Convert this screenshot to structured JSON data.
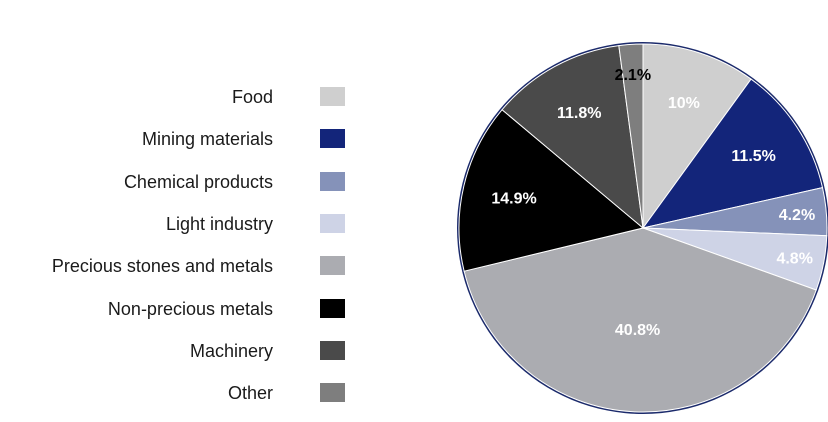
{
  "chart_data": {
    "type": "pie",
    "title": "",
    "border_color": "#1b2a6b",
    "slices": [
      {
        "label": "Food",
        "value": 10,
        "value_label": "10%",
        "color": "#cfcfcf",
        "label_color": "#ffffff"
      },
      {
        "label": "Mining materials",
        "value": 11.5,
        "value_label": "11.5%",
        "color": "#13257a",
        "label_color": "#ffffff"
      },
      {
        "label": "Chemical products",
        "value": 4.2,
        "value_label": "4.2%",
        "color": "#8592b9",
        "label_color": "#ffffff"
      },
      {
        "label": "Light industry",
        "value": 4.8,
        "value_label": "4.8%",
        "color": "#ced3e6",
        "label_color": "#ffffff"
      },
      {
        "label": "Precious stones and metals",
        "value": 40.8,
        "value_label": "40.8%",
        "color": "#abacb1",
        "label_color": "#ffffff"
      },
      {
        "label": "Non-precious metals",
        "value": 14.9,
        "value_label": "14.9%",
        "color": "#000000",
        "label_color": "#ffffff"
      },
      {
        "label": "Machinery",
        "value": 11.8,
        "value_label": "11.8%",
        "color": "#4a4a4a",
        "label_color": "#ffffff"
      },
      {
        "label": "Other",
        "value": 2.1,
        "value_label": "2.1%",
        "color": "#7e7e7e",
        "label_color": "#000000"
      }
    ]
  }
}
